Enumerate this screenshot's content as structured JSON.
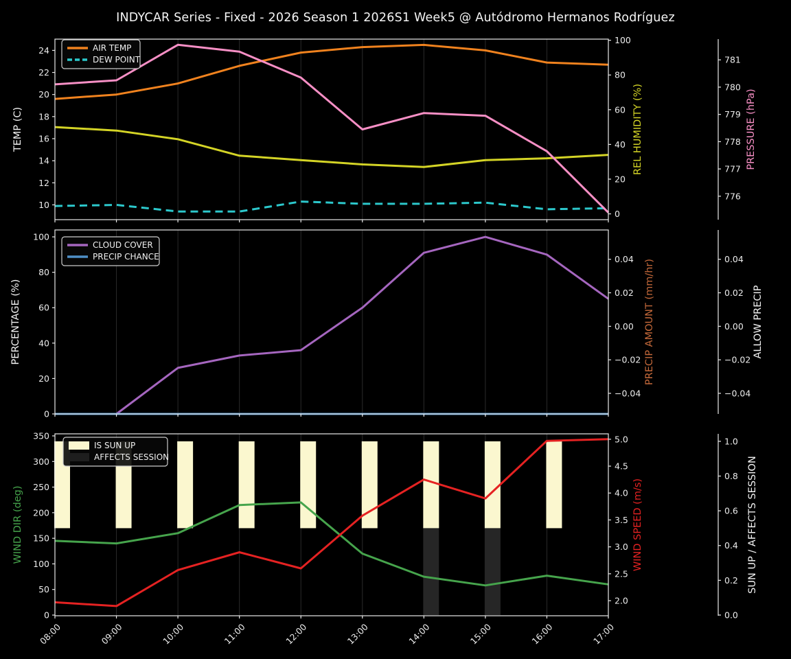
{
  "title": "INDYCAR Series - Fixed - 2026 Season 1 2026S1 Week5 @ Autódromo Hermanos Rodríguez",
  "figure": {
    "background": "#000000",
    "spine_color": "#eaeaea",
    "grid_color": "#2b2b2b",
    "tick_label_color": "#ececec"
  },
  "x_labels": [
    "08:00",
    "09:00",
    "10:00",
    "11:00",
    "12:00",
    "13:00",
    "14:00",
    "15:00",
    "16:00",
    "17:00"
  ],
  "chart_data": [
    {
      "id": "temperature-panel",
      "type": "line",
      "x": [
        "08:00",
        "09:00",
        "10:00",
        "11:00",
        "12:00",
        "13:00",
        "14:00",
        "15:00",
        "16:00",
        "17:00"
      ],
      "axes": {
        "left": {
          "label": "TEMP (C)",
          "color": "#f2f2f2",
          "range": [
            8.66,
            25.02
          ],
          "tick_values": [
            10,
            12,
            14,
            16,
            18,
            20,
            22,
            24
          ],
          "tick_labels": [
            "10",
            "12",
            "14",
            "16",
            "18",
            "20",
            "22",
            "24"
          ]
        },
        "right1": {
          "label": "REL HUMIDITY (%)",
          "color": "#d4d426",
          "range": [
            -3.34,
            100.66
          ],
          "tick_values": [
            0,
            20,
            40,
            60,
            80,
            100
          ],
          "tick_labels": [
            "0",
            "20",
            "40",
            "60",
            "80",
            "100"
          ]
        },
        "right2": {
          "label": "PRESSURE (hPa)",
          "color": "#f78fc5",
          "range": [
            775.14,
            781.76
          ],
          "tick_values": [
            776,
            777,
            778,
            779,
            780,
            781
          ],
          "tick_labels": [
            "776",
            "777",
            "778",
            "779",
            "780",
            "781"
          ]
        }
      },
      "series": [
        {
          "name": "AIR TEMP",
          "slug": "air-temp",
          "axis": "left",
          "color": "#f0821e",
          "width": 3,
          "dash": null,
          "values": [
            19.6,
            20.0,
            21.0,
            22.6,
            23.8,
            24.3,
            24.5,
            24.0,
            22.9,
            22.7
          ]
        },
        {
          "name": "DEW POINT",
          "slug": "dew-point",
          "axis": "left",
          "color": "#2cc8cc",
          "width": 3,
          "dash": "11,7",
          "values": [
            9.9,
            10.0,
            9.4,
            9.4,
            10.3,
            10.1,
            10.1,
            10.2,
            9.6,
            9.7
          ]
        },
        {
          "name": "REL HUMIDITY",
          "slug": "rel-humidity",
          "axis": "right1",
          "color": "#d4d426",
          "width": 3,
          "dash": null,
          "values": [
            50,
            48,
            43,
            33.5,
            31,
            28.5,
            27,
            31,
            32,
            34
          ]
        },
        {
          "name": "PRESSURE",
          "slug": "pressure",
          "axis": "right2",
          "color": "#f78fc5",
          "width": 3,
          "dash": null,
          "values": [
            780.1,
            780.25,
            781.55,
            781.3,
            780.35,
            778.45,
            779.05,
            778.95,
            777.65,
            775.4
          ]
        }
      ],
      "legend": [
        {
          "label": "AIR TEMP",
          "type": "line",
          "color": "#f0821e",
          "dash": null
        },
        {
          "label": "DEW POINT",
          "type": "line",
          "color": "#2cc8cc",
          "dash": "7,4"
        }
      ]
    },
    {
      "id": "cloud-precip-panel",
      "type": "line",
      "x": [
        "08:00",
        "09:00",
        "10:00",
        "11:00",
        "12:00",
        "13:00",
        "14:00",
        "15:00",
        "16:00",
        "17:00"
      ],
      "axes": {
        "left": {
          "label": "PERCENTAGE (%)",
          "color": "#f2f2f2",
          "range": [
            0,
            103.9
          ],
          "tick_values": [
            0,
            20,
            40,
            60,
            80,
            100
          ],
          "tick_labels": [
            "0",
            "20",
            "40",
            "60",
            "80",
            "100"
          ]
        },
        "right1": {
          "label": "PRECIP AMOUNT (mm/hr)",
          "color": "#c4693a",
          "range": [
            -0.0523,
            0.0575
          ],
          "tick_values": [
            0.04,
            0.02,
            0,
            -0.02,
            -0.04
          ],
          "tick_labels": [
            "0.04",
            "0.02",
            "0.00",
            "−0.02",
            "−0.04"
          ]
        },
        "right2": {
          "label": "ALLOW PRECIP",
          "color": "#f2f2f2",
          "range": [
            -0.0523,
            0.0575
          ],
          "tick_values": [
            0.04,
            0.02,
            0,
            -0.02,
            -0.04
          ],
          "tick_labels": [
            "0.04",
            "0.02",
            "0.00",
            "−0.02",
            "−0.04"
          ]
        }
      },
      "series": [
        {
          "name": "CLOUD COVER",
          "slug": "cloud-cover",
          "axis": "left",
          "color": "#a566bf",
          "width": 3,
          "dash": null,
          "values": [
            0,
            0,
            26,
            33,
            36,
            60,
            91,
            100,
            90,
            65
          ]
        },
        {
          "name": "PRECIP CHANCE",
          "slug": "precip-chance",
          "axis": "left",
          "color": "#4f8fc7",
          "width": 3,
          "dash": null,
          "values": [
            0,
            0,
            0,
            0,
            0,
            0,
            0,
            0,
            0,
            0
          ]
        }
      ],
      "legend": [
        {
          "label": "CLOUD COVER",
          "type": "line",
          "color": "#a566bf",
          "dash": null
        },
        {
          "label": "PRECIP CHANCE",
          "type": "line",
          "color": "#4f8fc7",
          "dash": null
        }
      ]
    },
    {
      "id": "wind-sun-panel",
      "type": "line",
      "x": [
        "08:00",
        "09:00",
        "10:00",
        "11:00",
        "12:00",
        "13:00",
        "14:00",
        "15:00",
        "16:00",
        "17:00"
      ],
      "axes": {
        "left": {
          "label": "WIND DIR (deg)",
          "color": "#46a44c",
          "range": [
            -1.3,
            354.0
          ],
          "tick_values": [
            0,
            50,
            100,
            150,
            200,
            250,
            300,
            350
          ],
          "tick_labels": [
            "0",
            "50",
            "100",
            "150",
            "200",
            "250",
            "300",
            "350"
          ]
        },
        "right1": {
          "label": "WIND SPEED (m/s)",
          "color": "#e52222",
          "range": [
            1.72,
            5.1
          ],
          "tick_values": [
            2.0,
            2.5,
            3.0,
            3.5,
            4.0,
            4.5,
            5.0
          ],
          "tick_labels": [
            "2.0",
            "2.5",
            "3.0",
            "3.5",
            "4.0",
            "4.5",
            "5.0"
          ]
        },
        "right2": {
          "label": "SUN UP / AFFECTS SESSION",
          "color": "#f2f2f2",
          "range": [
            -0.004,
            1.043
          ],
          "tick_values": [
            0.0,
            0.2,
            0.4,
            0.6,
            0.8,
            1.0
          ],
          "tick_labels": [
            "0.0",
            "0.2",
            "0.4",
            "0.6",
            "0.8",
            "1.0"
          ]
        }
      },
      "bars": [
        {
          "name": "IS SUN UP",
          "slug": "is-sun-up",
          "axis": "right2",
          "color": "#fbf7cf",
          "from": 0.5,
          "to": 1.0,
          "flags": [
            1,
            1,
            1,
            1,
            1,
            1,
            1,
            1,
            1,
            0
          ]
        },
        {
          "name": "AFFECTS SESSION",
          "slug": "affects-session",
          "axis": "right2",
          "color": "#262626",
          "from": 0.0,
          "to": 0.5,
          "flags": [
            0,
            0,
            0,
            0,
            0,
            0,
            1,
            1,
            0,
            0
          ]
        }
      ],
      "series": [
        {
          "name": "WIND DIR",
          "slug": "wind-dir",
          "axis": "left",
          "color": "#46a44c",
          "width": 3,
          "dash": null,
          "values": [
            145,
            140,
            160,
            215,
            220,
            120,
            75,
            58,
            77,
            60
          ]
        },
        {
          "name": "WIND SPEED",
          "slug": "wind-speed",
          "axis": "right1",
          "color": "#e52222",
          "width": 3,
          "dash": null,
          "values": [
            1.97,
            1.9,
            2.57,
            2.9,
            2.6,
            3.58,
            4.25,
            3.9,
            4.97,
            5.0
          ]
        }
      ],
      "legend": [
        {
          "label": "IS SUN UP",
          "type": "patch",
          "color": "#fbf7cf",
          "dash": null
        },
        {
          "label": "AFFECTS SESSION",
          "type": "patch",
          "color": "#1e1e1e",
          "dash": null
        }
      ]
    }
  ]
}
